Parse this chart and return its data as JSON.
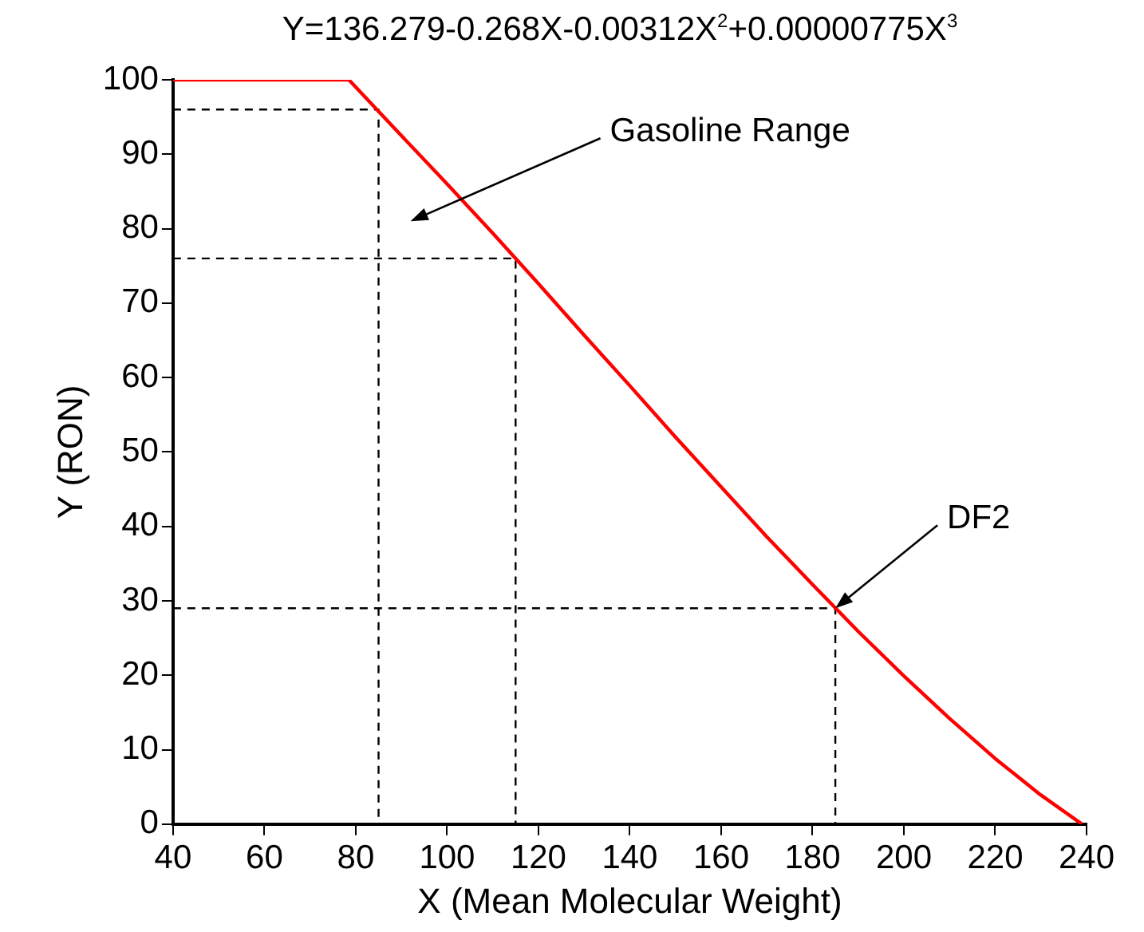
{
  "chart_data": {
    "type": "line",
    "title": "Y=136.279-0.268X-0.00312X$^{2}$+0.00000775X$^{3}$",
    "xlabel": "X (Mean Molecular Weight)",
    "ylabel": "Y (RON)",
    "series": [
      {
        "color": "#ff0000",
        "x": [
          40,
          78.5,
          90,
          100,
          110,
          120,
          130,
          140,
          150,
          160,
          170,
          180,
          190,
          200,
          210,
          220,
          230,
          239
        ],
        "values": [
          100,
          100,
          92.5,
          86,
          79.4,
          72.6,
          65.7,
          58.9,
          52,
          45.3,
          38.6,
          32.2,
          25.9,
          19.9,
          14.2,
          8.8,
          3.9,
          0
        ]
      },
      {
        "color": "#000000",
        "line_style": "dashed",
        "x": [
          40,
          85,
          85
        ],
        "values": [
          96,
          96,
          0
        ]
      },
      {
        "color": "#000000",
        "line_style": "dashed",
        "x": [
          40,
          115,
          115
        ],
        "values": [
          76,
          76,
          0
        ]
      },
      {
        "color": "#000000",
        "line_style": "dashed",
        "x": [
          40,
          185,
          185
        ],
        "values": [
          29,
          29,
          0
        ]
      }
    ],
    "xlim": [
      40,
      240
    ],
    "xticks": [
      40,
      60,
      80,
      100,
      120,
      140,
      160,
      180,
      200,
      220,
      240
    ],
    "ylim": [
      0,
      100
    ],
    "yticks": [
      0,
      10,
      20,
      30,
      40,
      50,
      60,
      70,
      80,
      90,
      100
    ],
    "annotations": [
      "Gasoline Range",
      {
        "text": "DF2",
        "x": 185,
        "y": 29
      }
    ],
    "grid": false,
    "legend": false,
    "marker": "none"
  }
}
